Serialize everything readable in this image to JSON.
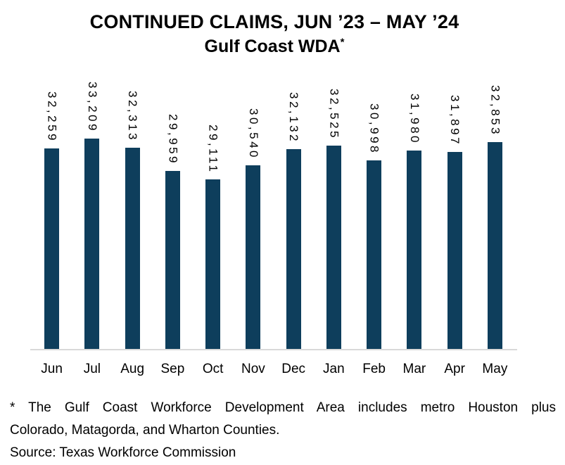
{
  "title": {
    "line1": "CONTINUED CLAIMS, JUN ’23 – MAY ’24",
    "line2": "Gulf Coast WDA",
    "superscript": "*"
  },
  "chart_data": {
    "type": "bar",
    "title": "CONTINUED CLAIMS, JUN ’23 – MAY ’24 Gulf Coast WDA*",
    "categories": [
      "Jun",
      "Jul",
      "Aug",
      "Sep",
      "Oct",
      "Nov",
      "Dec",
      "Jan",
      "Feb",
      "Mar",
      "Apr",
      "May"
    ],
    "values": [
      32259,
      33209,
      32313,
      29959,
      29111,
      30540,
      32132,
      32525,
      30998,
      31980,
      31897,
      32853
    ],
    "value_labels": [
      "32,259",
      "33,209",
      "32,313",
      "29,959",
      "29,111",
      "30,540",
      "32,132",
      "32,525",
      "30,998",
      "31,980",
      "31,897",
      "32,853"
    ],
    "xlabel": "",
    "ylabel": "",
    "ylim": [
      12000,
      33500
    ],
    "y_axis_visible": false,
    "grid": false,
    "legend": false,
    "data_label_rotation": "vertical",
    "bar_color": "#0e3e5c",
    "axis_line_color": "#d9d9d9"
  },
  "footnote": {
    "line1": "* The Gulf Coast Workforce Development Area includes metro Houston plus",
    "line2": "Colorado, Matagorda, and Wharton Counties.",
    "source": "Source: Texas Workforce Commission"
  }
}
